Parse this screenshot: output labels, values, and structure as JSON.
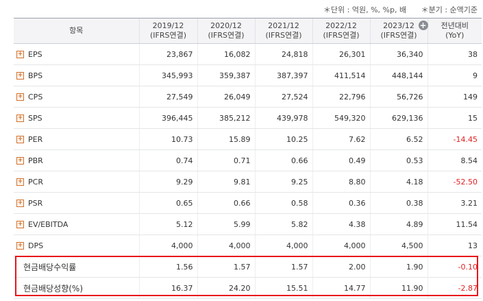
{
  "notes": {
    "unit": "＊단위 : 억원, %, %p, 배",
    "basis": "＊분기 : 순액기준"
  },
  "header": {
    "item": "항목",
    "periods": [
      {
        "year": "2019/12",
        "basis": "(IFRS연결)"
      },
      {
        "year": "2020/12",
        "basis": "(IFRS연결)"
      },
      {
        "year": "2021/12",
        "basis": "(IFRS연결)"
      },
      {
        "year": "2022/12",
        "basis": "(IFRS연결)"
      },
      {
        "year": "2023/12",
        "basis": "(IFRS연결)"
      }
    ],
    "yoy": "전년대비",
    "yoy_sub": "(YoY)",
    "expand_icon": "+"
  },
  "expand_icon_glyph": "+",
  "rows": [
    {
      "label": "EPS",
      "values": [
        "23,867",
        "16,082",
        "24,818",
        "26,301",
        "36,340"
      ],
      "yoy": "38"
    },
    {
      "label": "BPS",
      "values": [
        "345,993",
        "359,387",
        "387,397",
        "411,514",
        "448,144"
      ],
      "yoy": "9"
    },
    {
      "label": "CPS",
      "values": [
        "27,549",
        "26,049",
        "27,524",
        "22,796",
        "56,726"
      ],
      "yoy": "149"
    },
    {
      "label": "SPS",
      "values": [
        "396,445",
        "385,212",
        "439,978",
        "549,320",
        "629,136"
      ],
      "yoy": "15"
    },
    {
      "label": "PER",
      "values": [
        "10.73",
        "15.89",
        "10.25",
        "7.62",
        "6.52"
      ],
      "yoy": "-14.45"
    },
    {
      "label": "PBR",
      "values": [
        "0.74",
        "0.71",
        "0.66",
        "0.49",
        "0.53"
      ],
      "yoy": "8.54"
    },
    {
      "label": "PCR",
      "values": [
        "9.29",
        "9.81",
        "9.25",
        "8.80",
        "4.18"
      ],
      "yoy": "-52.50"
    },
    {
      "label": "PSR",
      "values": [
        "0.65",
        "0.66",
        "0.58",
        "0.36",
        "0.38"
      ],
      "yoy": "3.21"
    },
    {
      "label": "EV/EBITDA",
      "values": [
        "5.12",
        "5.99",
        "5.82",
        "4.38",
        "4.89"
      ],
      "yoy": "11.54"
    },
    {
      "label": "DPS",
      "values": [
        "4,000",
        "4,000",
        "4,000",
        "4,000",
        "4,500"
      ],
      "yoy": "13"
    },
    {
      "label": "현금배당수익률",
      "values": [
        "1.56",
        "1.57",
        "1.57",
        "2.00",
        "1.90"
      ],
      "yoy": "-0.10"
    },
    {
      "label": "현금배당성향(%)",
      "values": [
        "16.37",
        "24.20",
        "15.51",
        "14.77",
        "11.90"
      ],
      "yoy": "-2.87"
    }
  ],
  "colors": {
    "negative": "#e02020",
    "highlight_border": "#e8141b",
    "expand_icon": "#d2702c",
    "header_bg": "#f4f4f6"
  }
}
